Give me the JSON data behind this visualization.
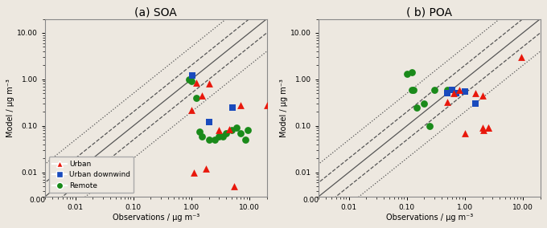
{
  "soa": {
    "title": "(a) SOA",
    "xlabel": "Observations / μg m⁻³",
    "ylabel": "Model / μg m⁻³",
    "urban_obs": [
      1.0,
      1.2,
      1.5,
      1.8,
      2.0,
      3.0,
      4.5,
      5.5,
      7.0,
      20.0,
      1.1
    ],
    "urban_mod": [
      0.22,
      0.85,
      0.45,
      0.012,
      0.8,
      0.08,
      0.085,
      0.005,
      0.28,
      0.28,
      0.01
    ],
    "udw_obs": [
      1.05,
      2.0,
      5.2
    ],
    "udw_mod": [
      1.2,
      0.12,
      0.25
    ],
    "remote_obs": [
      0.9,
      1.0,
      1.2,
      1.4,
      1.5,
      2.0,
      2.5,
      3.0,
      3.5,
      4.0,
      5.0,
      6.0,
      7.0,
      8.5,
      9.5
    ],
    "remote_mod": [
      1.0,
      0.9,
      0.4,
      0.075,
      0.06,
      0.05,
      0.05,
      0.06,
      0.06,
      0.07,
      0.08,
      0.09,
      0.07,
      0.05,
      0.08
    ]
  },
  "poa": {
    "title": "( b) POA",
    "xlabel": "Observations / μg m⁻³",
    "ylabel": "Model / μg m⁻³",
    "urban_obs": [
      0.5,
      0.65,
      0.8,
      1.0,
      1.5,
      2.0,
      2.1,
      2.5,
      9.5,
      2.0,
      2.5
    ],
    "urban_mod": [
      0.32,
      0.5,
      0.6,
      0.07,
      0.5,
      0.45,
      0.08,
      0.09,
      3.0,
      0.09,
      0.09
    ],
    "udw_obs": [
      0.5,
      0.6,
      0.7,
      1.0,
      1.5
    ],
    "udw_mod": [
      0.5,
      0.6,
      0.5,
      0.55,
      0.3
    ],
    "remote_obs": [
      0.1,
      0.12,
      0.15,
      0.2,
      0.25,
      0.3,
      0.5,
      0.12,
      0.13
    ],
    "remote_mod": [
      1.3,
      1.4,
      0.25,
      0.3,
      0.1,
      0.6,
      0.6,
      0.6,
      0.6
    ]
  },
  "colors": {
    "urban": "#e8180c",
    "urban_dw": "#1a4bbd",
    "remote": "#1a8a1a"
  },
  "marker_size": 40,
  "line_color": "#555555",
  "bg_color": "#ede8e0"
}
